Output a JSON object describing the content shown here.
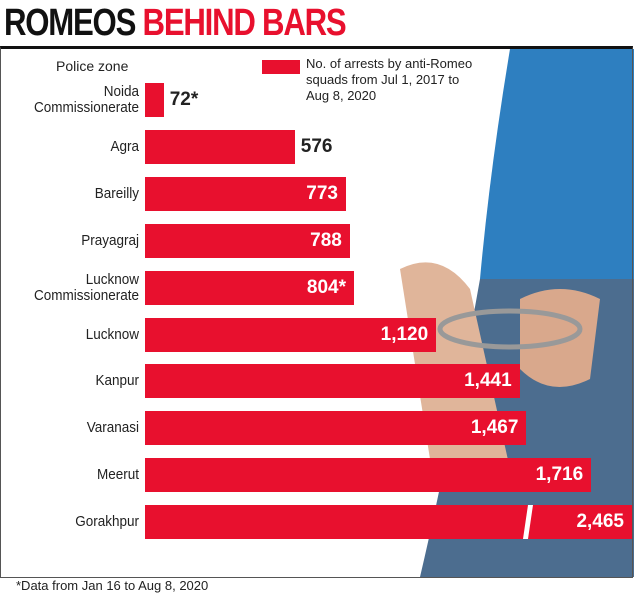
{
  "chart_data": {
    "type": "bar",
    "title_parts": [
      "ROMEOS",
      "BEHIND BARS"
    ],
    "category_label": "Police zone",
    "categories": [
      "Noida Commissionerate",
      "Agra",
      "Bareilly",
      "Prayagraj",
      "Lucknow Commissionerate",
      "Lucknow",
      "Kanpur",
      "Varanasi",
      "Meerut",
      "Gorakhpur"
    ],
    "series": [
      {
        "name": "No. of arrests by anti-Romeo squads from Jul 1, 2017 to Aug 8, 2020",
        "color": "#e8102e",
        "values": [
          72,
          576,
          773,
          788,
          804,
          1120,
          1441,
          1467,
          1716,
          2465
        ],
        "value_labels": [
          "72*",
          "576",
          "773",
          "788",
          "804*",
          "1,120",
          "1,441",
          "1,467",
          "1,716",
          "2,465"
        ]
      }
    ],
    "footnote": "*Data from Jan 16 to Aug 8, 2020"
  }
}
